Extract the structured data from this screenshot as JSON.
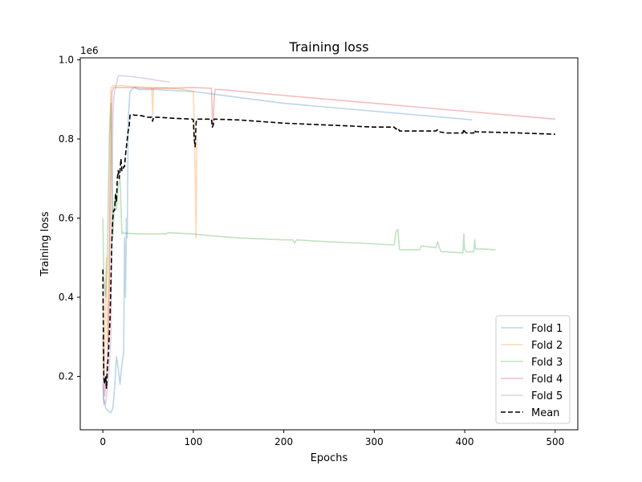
{
  "chart_data": {
    "type": "line",
    "title": "Training loss",
    "xlabel": "Epochs",
    "ylabel": "Training loss",
    "y_offset_label": "1e6",
    "xlim": [
      -25,
      525
    ],
    "ylim": [
      0.065,
      1.005
    ],
    "x_ticks": [
      0,
      100,
      200,
      300,
      400,
      500
    ],
    "x_tick_labels": [
      "0",
      "100",
      "200",
      "300",
      "400",
      "500"
    ],
    "y_ticks": [
      0.2,
      0.4,
      0.6,
      0.8,
      1.0
    ],
    "y_tick_labels": [
      "0.2",
      "0.4",
      "0.6",
      "0.8",
      "1.0"
    ],
    "grid": false,
    "legend_position": "lower-right",
    "series": [
      {
        "name": "Fold 1",
        "color": "#1f77b4",
        "opacity": 0.3,
        "dash": "solid",
        "x": [
          0,
          1,
          3,
          5,
          7,
          9,
          11,
          13,
          15,
          17,
          19,
          21,
          23,
          24,
          25,
          26,
          27,
          28,
          30,
          32,
          35,
          40,
          60,
          100,
          150,
          200,
          300,
          400,
          408
        ],
        "y": [
          0.18,
          0.14,
          0.12,
          0.115,
          0.11,
          0.108,
          0.12,
          0.17,
          0.25,
          0.22,
          0.18,
          0.23,
          0.26,
          0.55,
          0.4,
          0.6,
          0.55,
          0.85,
          0.92,
          0.925,
          0.93,
          0.925,
          0.925,
          0.92,
          0.905,
          0.89,
          0.87,
          0.85,
          0.848
        ]
      },
      {
        "name": "Fold 2",
        "color": "#ff7f0e",
        "opacity": 0.3,
        "dash": "solid",
        "x": [
          0,
          1,
          2,
          3,
          4,
          5,
          6,
          7,
          8,
          9,
          10,
          11,
          12,
          15,
          20,
          30,
          40,
          54,
          55,
          56,
          57,
          70,
          90,
          100,
          101,
          102,
          103,
          104
        ],
        "y": [
          0.4,
          0.2,
          0.25,
          0.44,
          0.5,
          0.28,
          0.3,
          0.45,
          0.85,
          0.93,
          0.93,
          0.935,
          0.935,
          0.935,
          0.935,
          0.933,
          0.932,
          0.93,
          0.86,
          0.93,
          0.93,
          0.93,
          0.925,
          0.92,
          0.85,
          0.7,
          0.55,
          0.8
        ]
      },
      {
        "name": "Fold 3",
        "color": "#2ca02c",
        "opacity": 0.3,
        "dash": "solid",
        "x": [
          0,
          1,
          3,
          5,
          7,
          9,
          11,
          13,
          15,
          17,
          19,
          21,
          22,
          23,
          40,
          70,
          72,
          100,
          120,
          150,
          200,
          210,
          212,
          214,
          250,
          300,
          322,
          324,
          326,
          328,
          340,
          350,
          352,
          368,
          370,
          372,
          374,
          380,
          398,
          399,
          400,
          402,
          410,
          411,
          412,
          420,
          434
        ],
        "y": [
          0.6,
          0.45,
          0.4,
          0.5,
          0.8,
          0.89,
          0.55,
          0.65,
          0.62,
          0.68,
          0.7,
          0.56,
          0.565,
          0.562,
          0.56,
          0.56,
          0.563,
          0.56,
          0.555,
          0.55,
          0.545,
          0.545,
          0.537,
          0.545,
          0.54,
          0.535,
          0.532,
          0.565,
          0.572,
          0.52,
          0.52,
          0.52,
          0.53,
          0.525,
          0.54,
          0.525,
          0.515,
          0.515,
          0.512,
          0.56,
          0.52,
          0.515,
          0.515,
          0.545,
          0.522,
          0.522,
          0.52
        ]
      },
      {
        "name": "Fold 4",
        "color": "#d62728",
        "opacity": 0.3,
        "dash": "solid",
        "x": [
          0,
          2,
          4,
          6,
          8,
          10,
          12,
          15,
          30,
          50,
          70,
          100,
          120,
          121,
          122,
          123,
          124,
          130,
          200,
          300,
          400,
          500
        ],
        "y": [
          0.3,
          0.15,
          0.2,
          0.3,
          0.6,
          0.92,
          0.93,
          0.93,
          0.93,
          0.928,
          0.928,
          0.93,
          0.928,
          0.86,
          0.84,
          0.9,
          0.925,
          0.925,
          0.91,
          0.89,
          0.87,
          0.85
        ]
      },
      {
        "name": "Fold 5",
        "color": "#9467bd",
        "opacity": 0.3,
        "dash": "solid",
        "x": [
          0,
          1,
          2,
          3,
          5,
          7,
          9,
          10,
          11,
          12,
          13,
          15,
          17,
          20,
          30,
          40,
          50,
          60,
          70,
          74
        ],
        "y": [
          0.2,
          0.13,
          0.14,
          0.13,
          0.17,
          0.22,
          0.3,
          0.6,
          0.85,
          0.9,
          0.92,
          0.94,
          0.96,
          0.96,
          0.958,
          0.955,
          0.952,
          0.948,
          0.945,
          0.944
        ]
      },
      {
        "name": "Mean",
        "color": "#000000",
        "opacity": 1,
        "dash": "dashed",
        "x": [
          0,
          1,
          2,
          3,
          4,
          5,
          6,
          7,
          8,
          9,
          10,
          11,
          12,
          13,
          14,
          15,
          16,
          17,
          18,
          19,
          20,
          21,
          22,
          23,
          24,
          25,
          26,
          27,
          28,
          29,
          30,
          32,
          35,
          40,
          50,
          54,
          55,
          56,
          60,
          80,
          99,
          100,
          101,
          102,
          103,
          104,
          120,
          121,
          122,
          123,
          124,
          150,
          200,
          250,
          300,
          322,
          324,
          326,
          328,
          350,
          368,
          370,
          372,
          380,
          398,
          399,
          400,
          402,
          410,
          411,
          412,
          450,
          500
        ],
        "y": [
          0.47,
          0.2,
          0.18,
          0.2,
          0.17,
          0.22,
          0.25,
          0.3,
          0.35,
          0.45,
          0.55,
          0.6,
          0.62,
          0.62,
          0.66,
          0.64,
          0.7,
          0.72,
          0.7,
          0.72,
          0.75,
          0.72,
          0.72,
          0.73,
          0.73,
          0.76,
          0.78,
          0.8,
          0.82,
          0.83,
          0.86,
          0.862,
          0.86,
          0.86,
          0.855,
          0.855,
          0.845,
          0.855,
          0.855,
          0.852,
          0.85,
          0.848,
          0.8,
          0.78,
          0.84,
          0.85,
          0.85,
          0.83,
          0.835,
          0.85,
          0.85,
          0.848,
          0.84,
          0.835,
          0.83,
          0.83,
          0.825,
          0.828,
          0.82,
          0.82,
          0.82,
          0.823,
          0.818,
          0.815,
          0.815,
          0.825,
          0.818,
          0.815,
          0.815,
          0.822,
          0.818,
          0.816,
          0.812
        ]
      }
    ]
  }
}
